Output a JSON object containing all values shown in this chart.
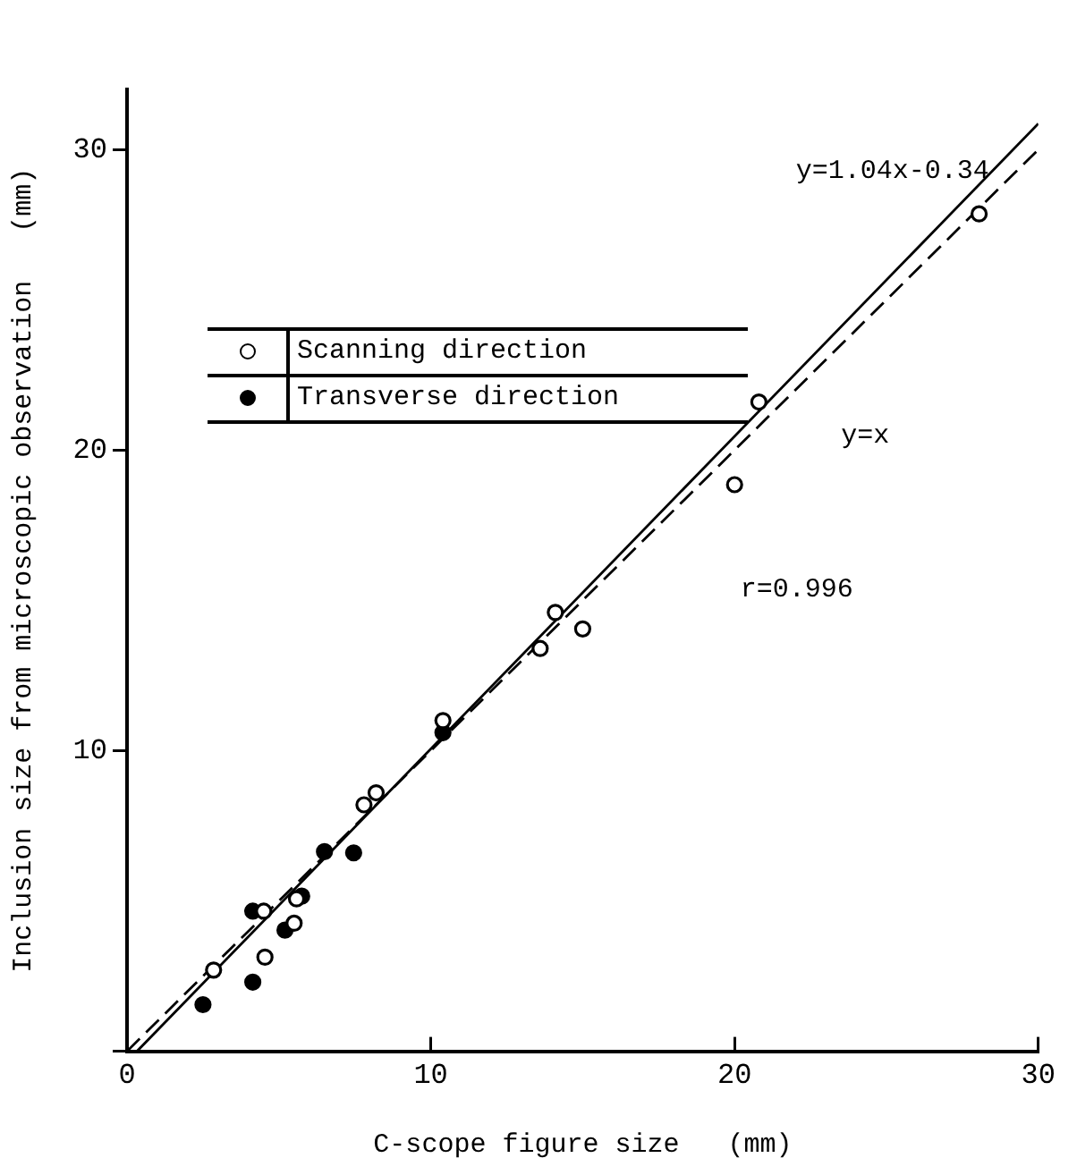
{
  "chart_data": {
    "type": "scatter",
    "xlabel": "C-scope figure size   (mm)",
    "ylabel": "Inclusion size from microscopic observation   (mm)",
    "xlim": [
      0,
      30
    ],
    "ylim": [
      0,
      32
    ],
    "xticks": [
      0,
      10,
      20,
      30
    ],
    "yticks": [
      {
        "value": 0,
        "label": null
      },
      10,
      20,
      30
    ],
    "grid": false,
    "legend": "top left",
    "marker": "circle",
    "series": [
      {
        "name": "Scanning direction",
        "color": "#000000",
        "x": [
          2.85,
          4.54,
          4.5,
          5.5,
          5.58,
          7.8,
          8.2,
          10.4,
          13.6,
          14.1,
          15.0,
          20.0,
          20.8,
          28.05
        ],
        "values": [
          2.7,
          3.13,
          4.66,
          4.26,
          5.07,
          8.2,
          8.6,
          11.0,
          13.4,
          14.6,
          14.05,
          18.85,
          21.6,
          27.86
        ]
      },
      {
        "name": "Transverse direction",
        "color": "#000000",
        "x": [
          2.5,
          4.14,
          4.14,
          5.2,
          5.75,
          6.5,
          7.46,
          10.4
        ],
        "values": [
          1.55,
          2.3,
          4.66,
          4.03,
          5.16,
          6.64,
          6.6,
          10.6
        ]
      },
      {
        "type": "line",
        "line_style": "solid",
        "color": "#000000",
        "marker": "none",
        "x": [
          0.33,
          30
        ],
        "values": [
          0,
          30.86
        ]
      },
      {
        "type": "line",
        "line_style": "dashed",
        "color": "#000000",
        "marker": "none",
        "x": [
          0,
          30
        ],
        "values": [
          0,
          30
        ]
      }
    ],
    "annotations": [
      "y=1.04x-0.34",
      "y=x",
      "r=0.996"
    ]
  }
}
